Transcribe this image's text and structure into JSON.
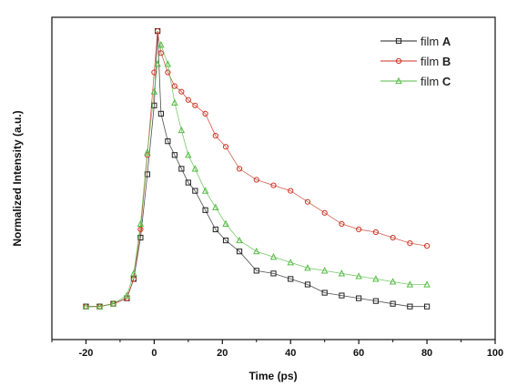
{
  "chart_data": {
    "type": "scatter",
    "xlabel": "Time (ps)",
    "ylabel": "Normalized Intensity (a.u.)",
    "xlim": [
      -30,
      100
    ],
    "ylim": [
      -0.12,
      1.05
    ],
    "x_ticks": [
      -20,
      0,
      20,
      40,
      60,
      80,
      100
    ],
    "x_tick_labels": [
      "-20",
      "0",
      "20",
      "40",
      "60",
      "80",
      "100"
    ],
    "y_ticks_labeled": false,
    "grid": false,
    "legend_position": "top-right",
    "series": [
      {
        "name_prefix": "film",
        "name_suffix": "A",
        "marker": "square",
        "color": "#222222",
        "x": [
          -20,
          -16,
          -12,
          -8,
          -6,
          -4,
          -2,
          0,
          1,
          2,
          4,
          6,
          8,
          10,
          12,
          15,
          18,
          21,
          25,
          30,
          35,
          40,
          45,
          50,
          55,
          60,
          65,
          70,
          75,
          80
        ],
        "y": [
          0.0,
          0.0,
          0.01,
          0.03,
          0.1,
          0.25,
          0.48,
          0.73,
          1.0,
          0.7,
          0.6,
          0.55,
          0.5,
          0.45,
          0.42,
          0.35,
          0.28,
          0.24,
          0.2,
          0.13,
          0.12,
          0.1,
          0.08,
          0.05,
          0.04,
          0.03,
          0.02,
          0.01,
          0.0,
          0.0
        ]
      },
      {
        "name_prefix": "film",
        "name_suffix": "B",
        "marker": "circle",
        "color": "#cc3322",
        "x": [
          -20,
          -16,
          -12,
          -8,
          -6,
          -4,
          -2,
          0,
          1,
          2,
          4,
          6,
          8,
          10,
          12,
          15,
          18,
          21,
          25,
          30,
          35,
          40,
          45,
          50,
          55,
          60,
          65,
          70,
          75,
          80
        ],
        "y": [
          0.0,
          0.0,
          0.01,
          0.03,
          0.1,
          0.28,
          0.55,
          0.85,
          1.0,
          0.92,
          0.85,
          0.8,
          0.78,
          0.75,
          0.73,
          0.7,
          0.62,
          0.58,
          0.5,
          0.46,
          0.44,
          0.42,
          0.38,
          0.34,
          0.3,
          0.28,
          0.27,
          0.25,
          0.23,
          0.22
        ]
      },
      {
        "name_prefix": "film",
        "name_suffix": "C",
        "marker": "triangle",
        "color": "#55bb44",
        "x": [
          -20,
          -16,
          -12,
          -8,
          -6,
          -4,
          -2,
          0,
          1,
          2,
          4,
          6,
          8,
          10,
          12,
          15,
          18,
          21,
          25,
          30,
          35,
          40,
          45,
          50,
          55,
          60,
          65,
          70,
          75,
          80
        ],
        "y": [
          0.0,
          0.0,
          0.01,
          0.04,
          0.12,
          0.3,
          0.56,
          0.78,
          0.88,
          0.95,
          0.88,
          0.74,
          0.64,
          0.55,
          0.5,
          0.42,
          0.36,
          0.3,
          0.24,
          0.2,
          0.18,
          0.16,
          0.14,
          0.13,
          0.12,
          0.11,
          0.1,
          0.09,
          0.08,
          0.08
        ]
      }
    ]
  }
}
